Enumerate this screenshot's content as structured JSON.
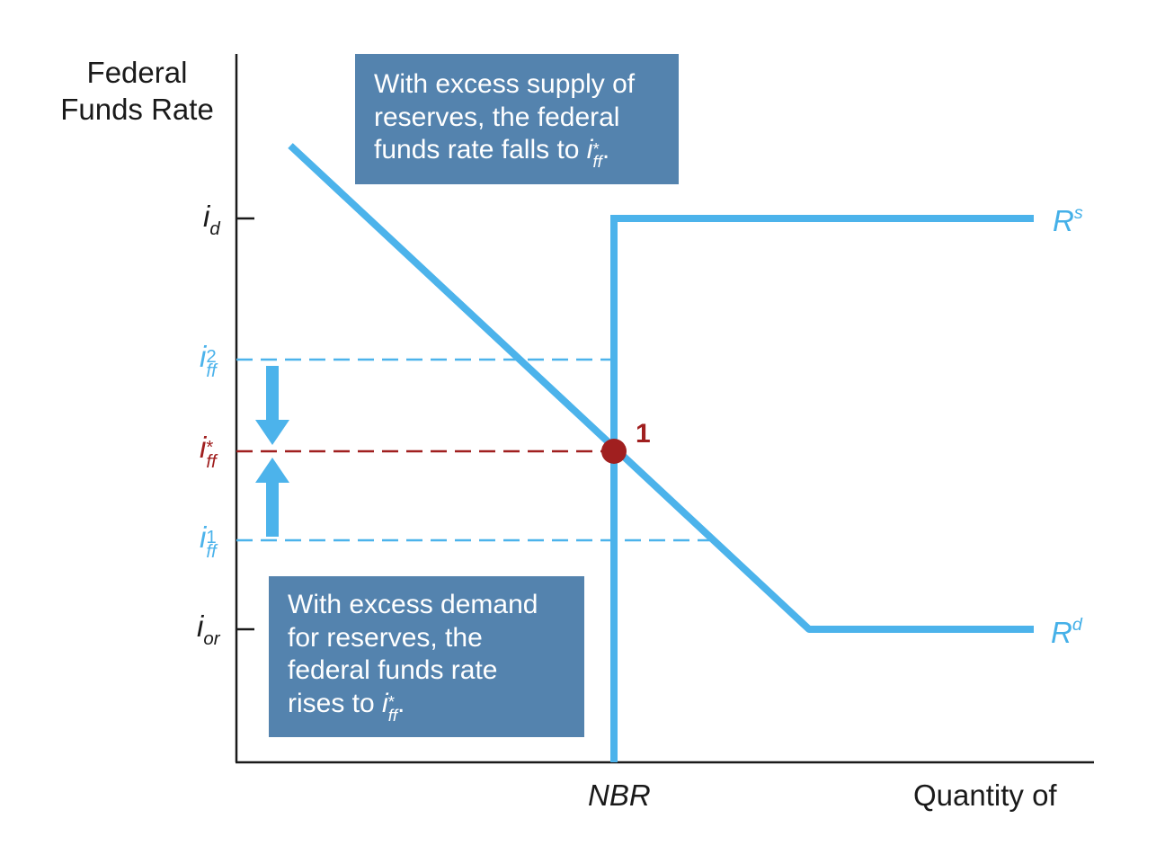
{
  "y_axis_title": [
    "Federal",
    "Funds Rate"
  ],
  "x_axis_title": "Quantity of",
  "nbr_label": "NBR",
  "annotations": {
    "excess_supply": {
      "lines": [
        "With excess supply of",
        "reserves, the federal",
        "funds rate falls to "
      ],
      "symbol": "i",
      "symbol_sub": "ff",
      "symbol_sup": "*",
      "end": "."
    },
    "excess_demand": {
      "lines": [
        "With excess demand",
        "for reserves, the",
        "federal funds rate",
        "rises to "
      ],
      "symbol": "i",
      "symbol_sub": "ff",
      "symbol_sup": "*",
      "end": "."
    }
  },
  "rate_labels": {
    "i_d": {
      "base": "i",
      "sub": "d"
    },
    "i_ff2": {
      "base": "i",
      "sup": "2",
      "sub": "ff"
    },
    "i_ff_star": {
      "base": "i",
      "sup": "*",
      "sub": "ff"
    },
    "i_ff1": {
      "base": "i",
      "sup": "1",
      "sub": "ff"
    },
    "i_or": {
      "base": "i",
      "sub": "or"
    }
  },
  "curves": {
    "supply": {
      "base": "R",
      "sup": "s"
    },
    "demand": {
      "base": "R",
      "sup": "d"
    }
  },
  "equilibrium_label": "1",
  "colors": {
    "curve_blue": "#4cb3eb",
    "equilibrium_red": "#a01f1f",
    "box_fill": "#5483ae",
    "axis": "#1a1a1a"
  }
}
